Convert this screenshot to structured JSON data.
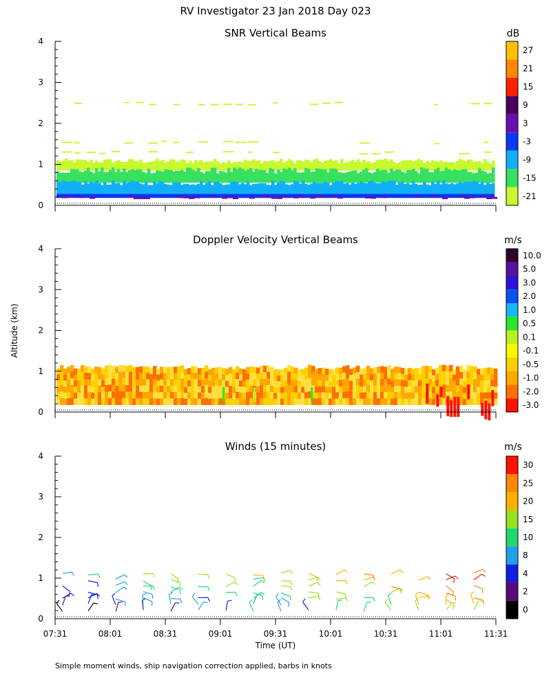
{
  "title": "RV Investigator  23 Jan 2018 Day 023",
  "footnote": "Simple moment winds, ship navigation correction applied, barbs in knots",
  "ylabel": "Altitude (km)",
  "xlabel": "Time (UT)",
  "x_ticks": [
    "07:31",
    "08:01",
    "08:31",
    "09:01",
    "09:31",
    "10:01",
    "10:31",
    "11:01",
    "11:31"
  ],
  "y_ticks": [
    "0",
    "1",
    "2",
    "3",
    "4"
  ],
  "chart_data": [
    {
      "type": "heatmap",
      "title": "SNR Vertical Beams",
      "unit": "dB",
      "ylim": [
        0,
        4
      ],
      "xlim": [
        "07:31",
        "11:31"
      ],
      "colorbar_labels": [
        "27",
        "21",
        "15",
        "9",
        "3",
        "-3",
        "-9",
        "-15",
        "-21"
      ],
      "colors": [
        "#ffc000",
        "#ff8800",
        "#ff2000",
        "#480060",
        "#6a10b0",
        "#0838f0",
        "#10b0f8",
        "#38e060",
        "#c8f830"
      ],
      "layers_km": [
        {
          "label": "-3",
          "bottom": 0.18,
          "top": 0.28
        },
        {
          "label": "-9",
          "bottom": 0.28,
          "top": 0.55
        },
        {
          "label": "-15",
          "bottom": 0.55,
          "top": 0.85
        },
        {
          "label": "-21",
          "bottom": 0.85,
          "top": 1.08
        }
      ],
      "sparse_echo_km": [
        1.3,
        1.55,
        2.5
      ]
    },
    {
      "type": "heatmap",
      "title": "Doppler Velocity Vertical Beams",
      "unit": "m/s",
      "ylim": [
        0,
        4
      ],
      "xlim": [
        "07:31",
        "11:31"
      ],
      "colorbar_labels": [
        "10.0",
        "5.0",
        "3.0",
        "2.0",
        "1.0",
        "0.5",
        "0.1",
        "-0.1",
        "-0.5",
        "-1.0",
        "-2.0",
        "-3.0"
      ],
      "colors": [
        "#300030",
        "#5a10a0",
        "#3010d8",
        "#0850f0",
        "#18b8f0",
        "#28e828",
        "#b8f020",
        "#f8f800",
        "#ffd000",
        "#ffa800",
        "#ff7000",
        "#ff1000"
      ],
      "echo_bottom_km": 0.18,
      "echo_top_km": 1.1,
      "dominant_range": [
        "-0.5",
        "-2.0"
      ]
    },
    {
      "type": "scatter",
      "title": "Winds (15 minutes)",
      "unit": "m/s",
      "ylim": [
        0,
        4
      ],
      "xlim": [
        "07:31",
        "11:31"
      ],
      "colorbar_labels": [
        "30",
        "25",
        "20",
        "15",
        "10",
        "8",
        "4",
        "2",
        "0"
      ],
      "colors": [
        "#ff1000",
        "#ff8800",
        "#ffb000",
        "#98e020",
        "#20d870",
        "#20a0e8",
        "#1020e0",
        "#5a0878",
        "#000000"
      ],
      "profile_times": [
        "07:35",
        "07:49",
        "08:04",
        "08:19",
        "08:34",
        "08:49",
        "09:04",
        "09:19",
        "09:34",
        "09:49",
        "10:04",
        "10:19",
        "10:34",
        "10:49",
        "11:04",
        "11:19"
      ],
      "barb_heights_km": [
        0.2,
        0.35,
        0.5,
        0.65,
        0.8,
        0.95,
        1.1
      ]
    }
  ]
}
